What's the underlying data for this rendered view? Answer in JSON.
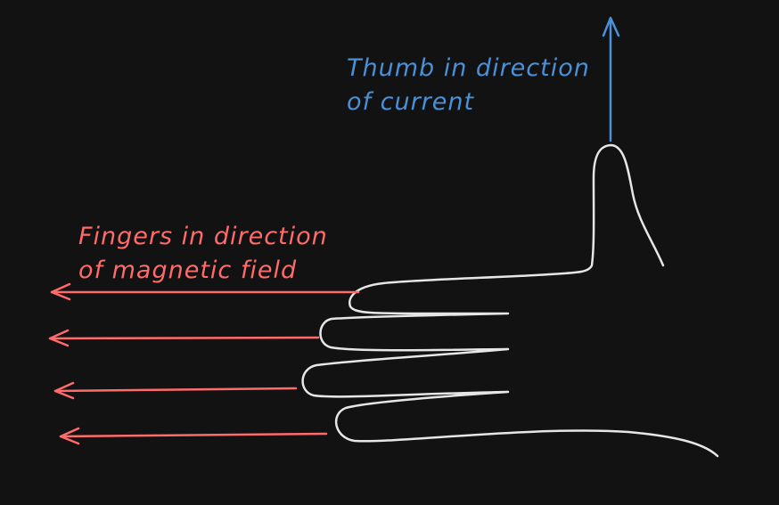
{
  "colors": {
    "background": "#121212",
    "hand_outline": "#e6e6e6",
    "current": "#4a90d9",
    "magnetic_field": "#ff6b6b"
  },
  "labels": {
    "thumb": {
      "line1": "Thumb in direction",
      "line2": "of current"
    },
    "fingers": {
      "line1": "Fingers in direction",
      "line2": "of magnetic field"
    }
  }
}
